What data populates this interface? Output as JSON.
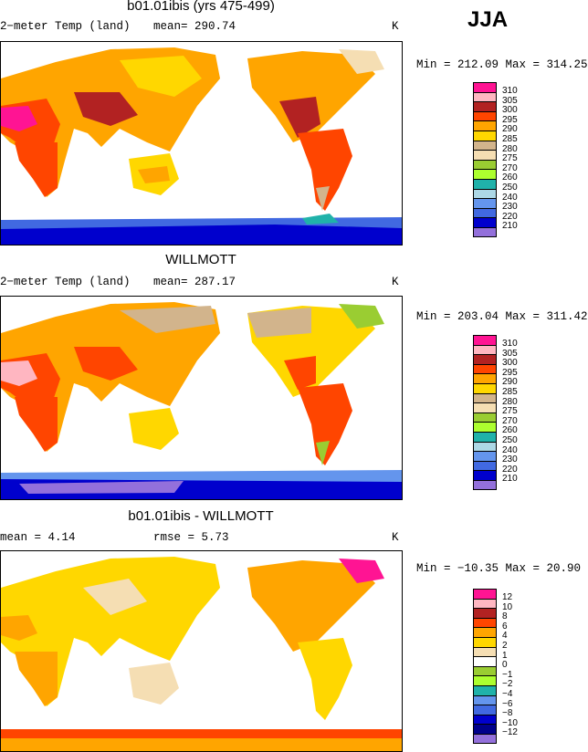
{
  "season": "JJA",
  "panels": [
    {
      "title": "b01.01ibis (yrs 475-499)",
      "left": "2−meter Temp (land)",
      "mean": "mean= 290.74",
      "units": "K",
      "minmax": "Min = 212.09 Max = 314.25",
      "legend": [
        {
          "label": "310",
          "color": "#ff1493"
        },
        {
          "label": "305",
          "color": "#ffb6c1"
        },
        {
          "label": "300",
          "color": "#b22222"
        },
        {
          "label": "295",
          "color": "#ff4500"
        },
        {
          "label": "290",
          "color": "#ffa500"
        },
        {
          "label": "285",
          "color": "#ffd700"
        },
        {
          "label": "280",
          "color": "#d2b48c"
        },
        {
          "label": "275",
          "color": "#f5deb3"
        },
        {
          "label": "270",
          "color": "#9acd32"
        },
        {
          "label": "260",
          "color": "#adff2f"
        },
        {
          "label": "250",
          "color": "#20b2aa"
        },
        {
          "label": "240",
          "color": "#add8e6"
        },
        {
          "label": "230",
          "color": "#6495ed"
        },
        {
          "label": "220",
          "color": "#4169e1"
        },
        {
          "label": "210",
          "color": "#0000cd"
        },
        {
          "label": "",
          "color": "#9370db"
        }
      ]
    },
    {
      "title": "WILLMOTT",
      "left": "2−meter Temp (land)",
      "mean": "mean= 287.17",
      "units": "K",
      "minmax": "Min = 203.04 Max = 311.42",
      "legend": [
        {
          "label": "310",
          "color": "#ff1493"
        },
        {
          "label": "305",
          "color": "#ffb6c1"
        },
        {
          "label": "300",
          "color": "#b22222"
        },
        {
          "label": "295",
          "color": "#ff4500"
        },
        {
          "label": "290",
          "color": "#ffa500"
        },
        {
          "label": "285",
          "color": "#ffd700"
        },
        {
          "label": "280",
          "color": "#d2b48c"
        },
        {
          "label": "275",
          "color": "#f5deb3"
        },
        {
          "label": "270",
          "color": "#9acd32"
        },
        {
          "label": "260",
          "color": "#adff2f"
        },
        {
          "label": "250",
          "color": "#20b2aa"
        },
        {
          "label": "240",
          "color": "#add8e6"
        },
        {
          "label": "230",
          "color": "#6495ed"
        },
        {
          "label": "220",
          "color": "#4169e1"
        },
        {
          "label": "210",
          "color": "#0000cd"
        },
        {
          "label": "",
          "color": "#9370db"
        }
      ]
    },
    {
      "title": "b01.01ibis - WILLMOTT",
      "left": "mean =    4.14",
      "mean": "rmse =    5.73",
      "units": "K",
      "minmax": "Min = −10.35 Max =  20.90",
      "legend": [
        {
          "label": "12",
          "color": "#ff1493"
        },
        {
          "label": "10",
          "color": "#ffb6c1"
        },
        {
          "label": "8",
          "color": "#b22222"
        },
        {
          "label": "6",
          "color": "#ff4500"
        },
        {
          "label": "4",
          "color": "#ffa500"
        },
        {
          "label": "2",
          "color": "#ffd700"
        },
        {
          "label": "1",
          "color": "#f5deb3"
        },
        {
          "label": "0",
          "color": "#ffffff"
        },
        {
          "label": "−1",
          "color": "#9acd32"
        },
        {
          "label": "−2",
          "color": "#adff2f"
        },
        {
          "label": "−4",
          "color": "#20b2aa"
        },
        {
          "label": "−6",
          "color": "#6495ed"
        },
        {
          "label": "−8",
          "color": "#4169e1"
        },
        {
          "label": "−10",
          "color": "#0000cd"
        },
        {
          "label": "−12",
          "color": "#00008b"
        },
        {
          "label": "",
          "color": "#9370db"
        }
      ]
    }
  ]
}
